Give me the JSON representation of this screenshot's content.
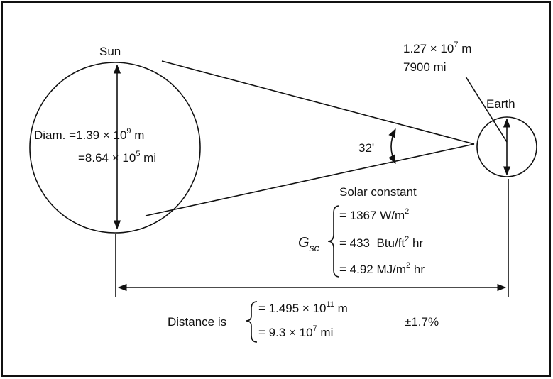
{
  "sun": {
    "label": "Sun",
    "diameter_m": {
      "prefix": "Diam. =1.39 × 10",
      "sup": "9",
      "suffix": " m"
    },
    "diameter_mi": {
      "prefix": "=8.64 × 10",
      "sup": "5",
      "suffix": " mi"
    }
  },
  "earth": {
    "label": "Earth",
    "diameter_m": {
      "prefix": "1.27 × 10",
      "sup": "7",
      "suffix": " m"
    },
    "diameter_mi": "7900 mi"
  },
  "angle": "32'",
  "solar_constant": {
    "title": "Solar constant",
    "symbol": "G",
    "subscript": "sc",
    "values": [
      {
        "prefix": "= 1367 W/m",
        "sup": "2",
        "suffix": ""
      },
      {
        "prefix": "= 433  Btu/ft",
        "sup": "2",
        "suffix": " hr"
      },
      {
        "prefix": "= 4.92 MJ/m",
        "sup": "2",
        "suffix": " hr"
      }
    ]
  },
  "distance": {
    "label": "Distance is",
    "values": [
      {
        "prefix": "= 1.495 × 10",
        "sup": "11",
        "suffix": " m"
      },
      {
        "prefix": "= 9.3 × 10",
        "sup": "7",
        "suffix": " mi"
      }
    ],
    "tolerance": "±1.7%"
  }
}
